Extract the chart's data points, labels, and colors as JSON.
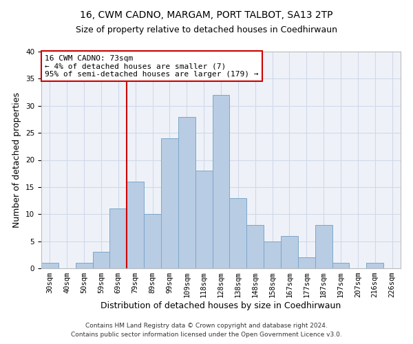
{
  "title": "16, CWM CADNO, MARGAM, PORT TALBOT, SA13 2TP",
  "subtitle": "Size of property relative to detached houses in Coedhirwaun",
  "xlabel": "Distribution of detached houses by size in Coedhirwaun",
  "ylabel": "Number of detached properties",
  "footnote1": "Contains HM Land Registry data © Crown copyright and database right 2024.",
  "footnote2": "Contains public sector information licensed under the Open Government Licence v3.0.",
  "bar_labels": [
    "30sqm",
    "40sqm",
    "50sqm",
    "59sqm",
    "69sqm",
    "79sqm",
    "89sqm",
    "99sqm",
    "109sqm",
    "118sqm",
    "128sqm",
    "138sqm",
    "148sqm",
    "158sqm",
    "167sqm",
    "177sqm",
    "187sqm",
    "197sqm",
    "207sqm",
    "216sqm",
    "226sqm"
  ],
  "bar_values": [
    1,
    0,
    1,
    3,
    11,
    16,
    10,
    24,
    28,
    18,
    32,
    13,
    8,
    5,
    6,
    2,
    8,
    1,
    0,
    1,
    0
  ],
  "bar_color": "#b8cce4",
  "bar_edge_color": "#7ba7c9",
  "ylim": [
    0,
    40
  ],
  "yticks": [
    0,
    5,
    10,
    15,
    20,
    25,
    30,
    35,
    40
  ],
  "vline_color": "#cc0000",
  "annotation_title": "16 CWM CADNO: 73sqm",
  "annotation_line1": "← 4% of detached houses are smaller (7)",
  "annotation_line2": "95% of semi-detached houses are larger (179) →",
  "annotation_box_color": "#cc0000",
  "annotation_box_fill": "#ffffff",
  "title_fontsize": 10,
  "subtitle_fontsize": 9,
  "axis_label_fontsize": 9,
  "tick_fontsize": 7.5,
  "annotation_fontsize": 8,
  "footnote_fontsize": 6.5,
  "grid_color": "#d0d8e8",
  "bg_color": "#eef2f8"
}
